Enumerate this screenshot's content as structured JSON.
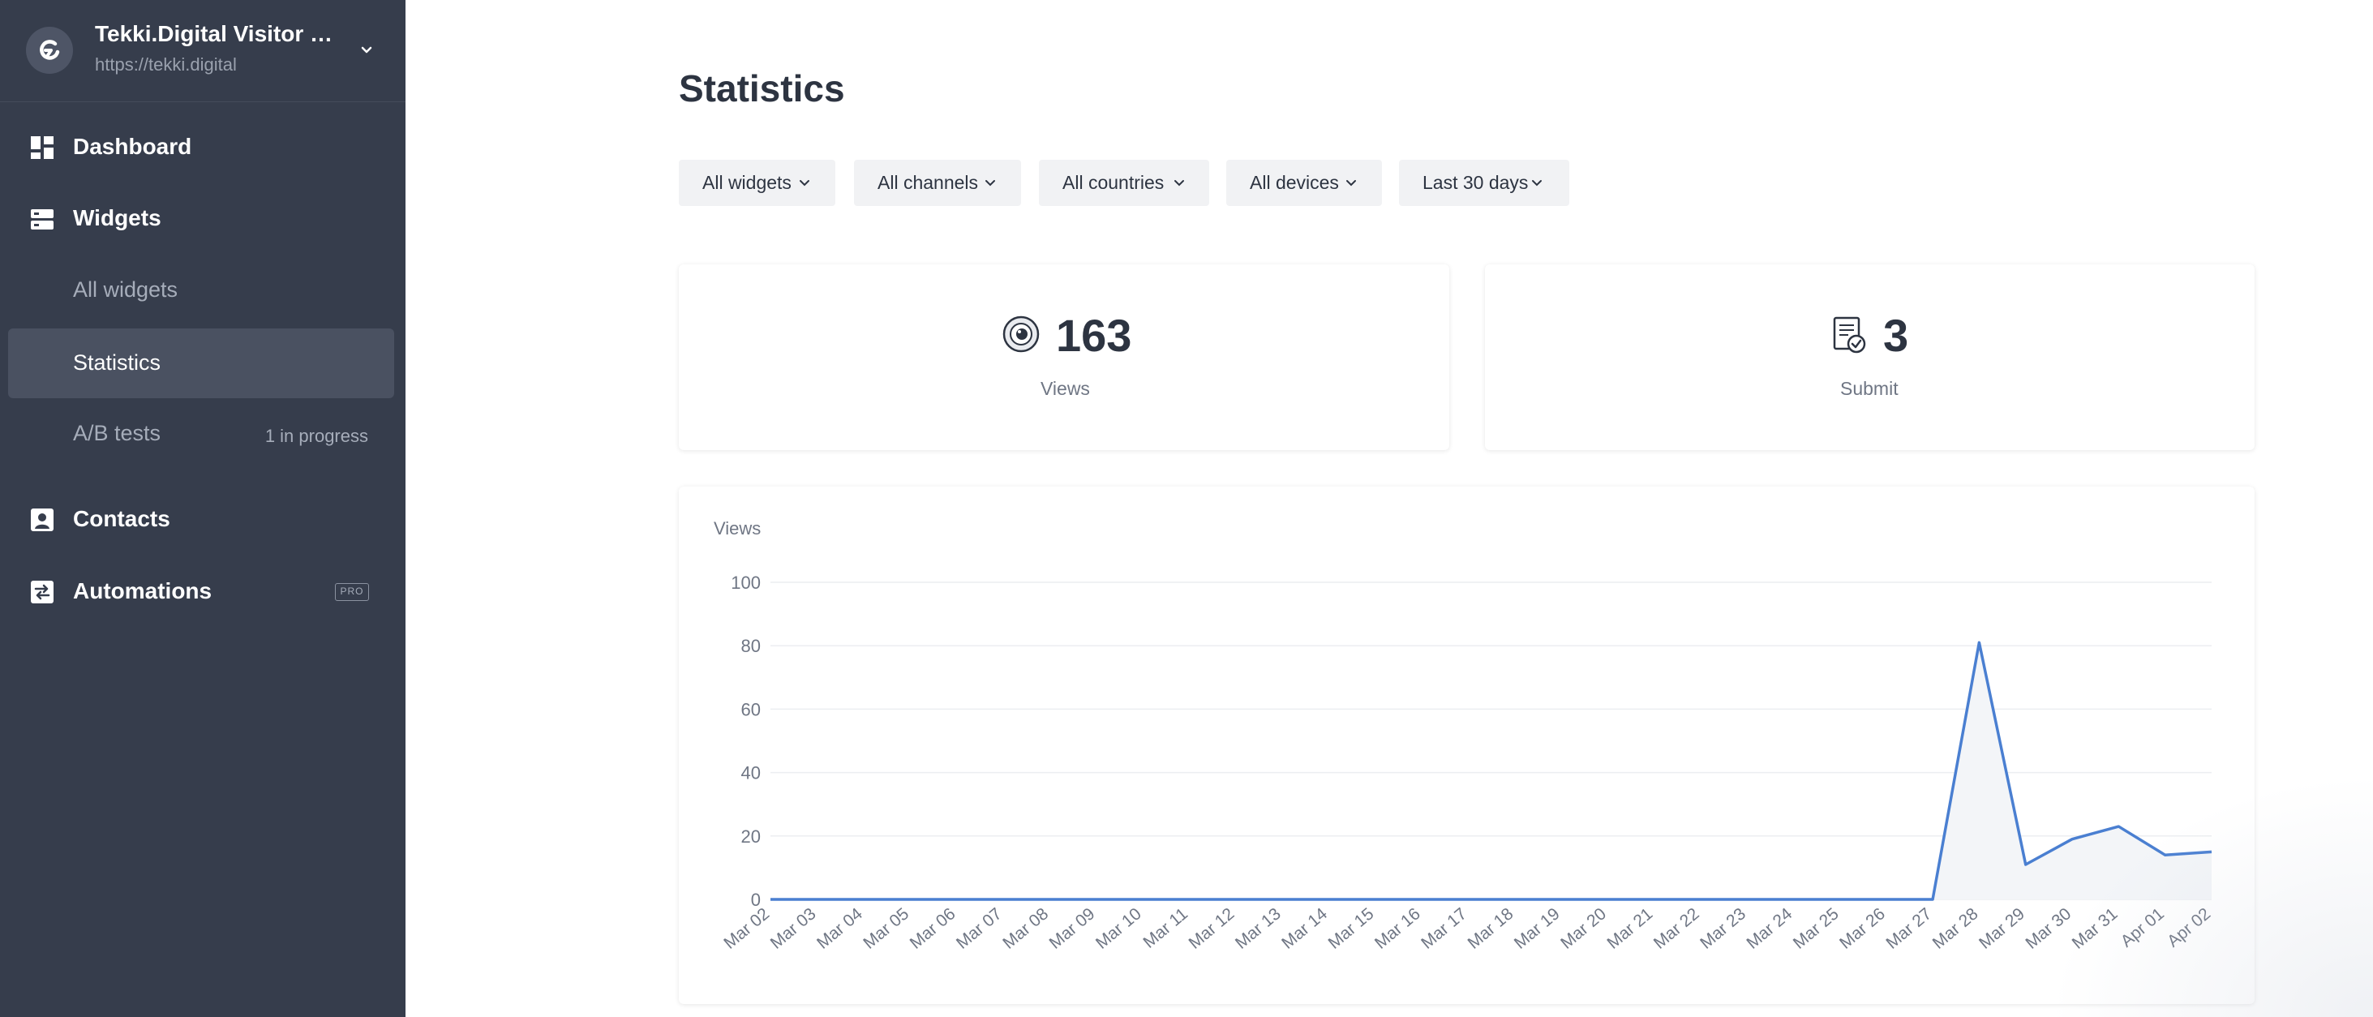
{
  "site": {
    "name": "Tekki.Digital Visitor Surv...",
    "url": "https://tekki.digital"
  },
  "nav": {
    "dashboard": "Dashboard",
    "widgets": "Widgets",
    "all_widgets": "All widgets",
    "statistics": "Statistics",
    "ab_tests": "A/B tests",
    "ab_tests_status": "1 in progress",
    "contacts": "Contacts",
    "automations": "Automations",
    "pro_badge": "PRO"
  },
  "page": {
    "title": "Statistics"
  },
  "filters": [
    "All widgets",
    "All channels",
    "All countries",
    "All devices",
    "Last 30 days"
  ],
  "stats": {
    "views": {
      "value": "163",
      "label": "Views",
      "icon": "eye-icon"
    },
    "submit": {
      "value": "3",
      "label": "Submit",
      "icon": "form-check-icon"
    }
  },
  "colors": {
    "sidebar_bg": "#363d4c",
    "line": "#4a7fd1",
    "accent_active": "#4a5161"
  },
  "chart_data": {
    "type": "area",
    "title": "",
    "ylabel": "Views",
    "xlabel": "",
    "ylim": [
      0,
      100
    ],
    "yticks": [
      0,
      20,
      40,
      60,
      80,
      100
    ],
    "grid": true,
    "categories": [
      "Mar 02",
      "Mar 03",
      "Mar 04",
      "Mar 05",
      "Mar 06",
      "Mar 07",
      "Mar 08",
      "Mar 09",
      "Mar 10",
      "Mar 11",
      "Mar 12",
      "Mar 13",
      "Mar 14",
      "Mar 15",
      "Mar 16",
      "Mar 17",
      "Mar 18",
      "Mar 19",
      "Mar 20",
      "Mar 21",
      "Mar 22",
      "Mar 23",
      "Mar 24",
      "Mar 25",
      "Mar 26",
      "Mar 27",
      "Mar 28",
      "Mar 29",
      "Mar 30",
      "Mar 31",
      "Apr 01",
      "Apr 02"
    ],
    "series": [
      {
        "values": [
          0,
          0,
          0,
          0,
          0,
          0,
          0,
          0,
          0,
          0,
          0,
          0,
          0,
          0,
          0,
          0,
          0,
          0,
          0,
          0,
          0,
          0,
          0,
          0,
          0,
          0,
          81,
          11,
          19,
          23,
          14,
          15
        ]
      }
    ]
  }
}
